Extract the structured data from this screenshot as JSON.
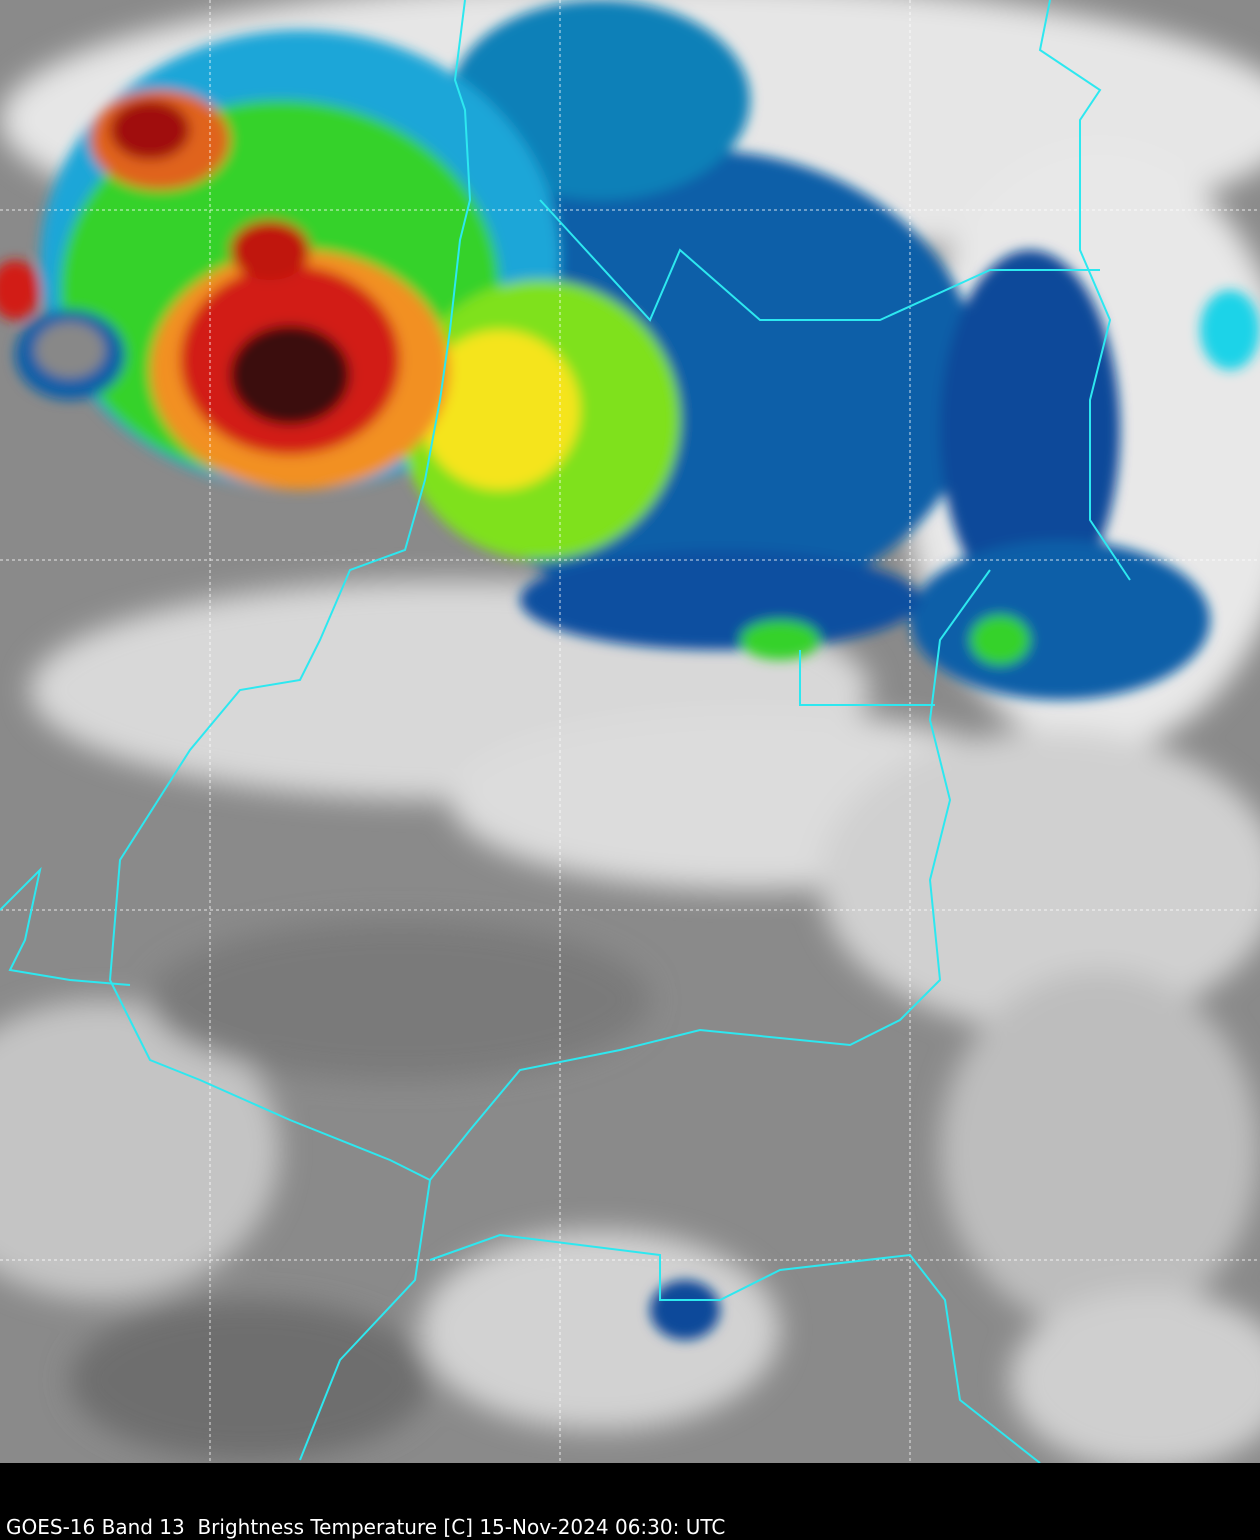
{
  "caption": "GOES-16 Band 13  Brightness Temperature [C] 15-Nov-2024 06:30: UTC"
}
